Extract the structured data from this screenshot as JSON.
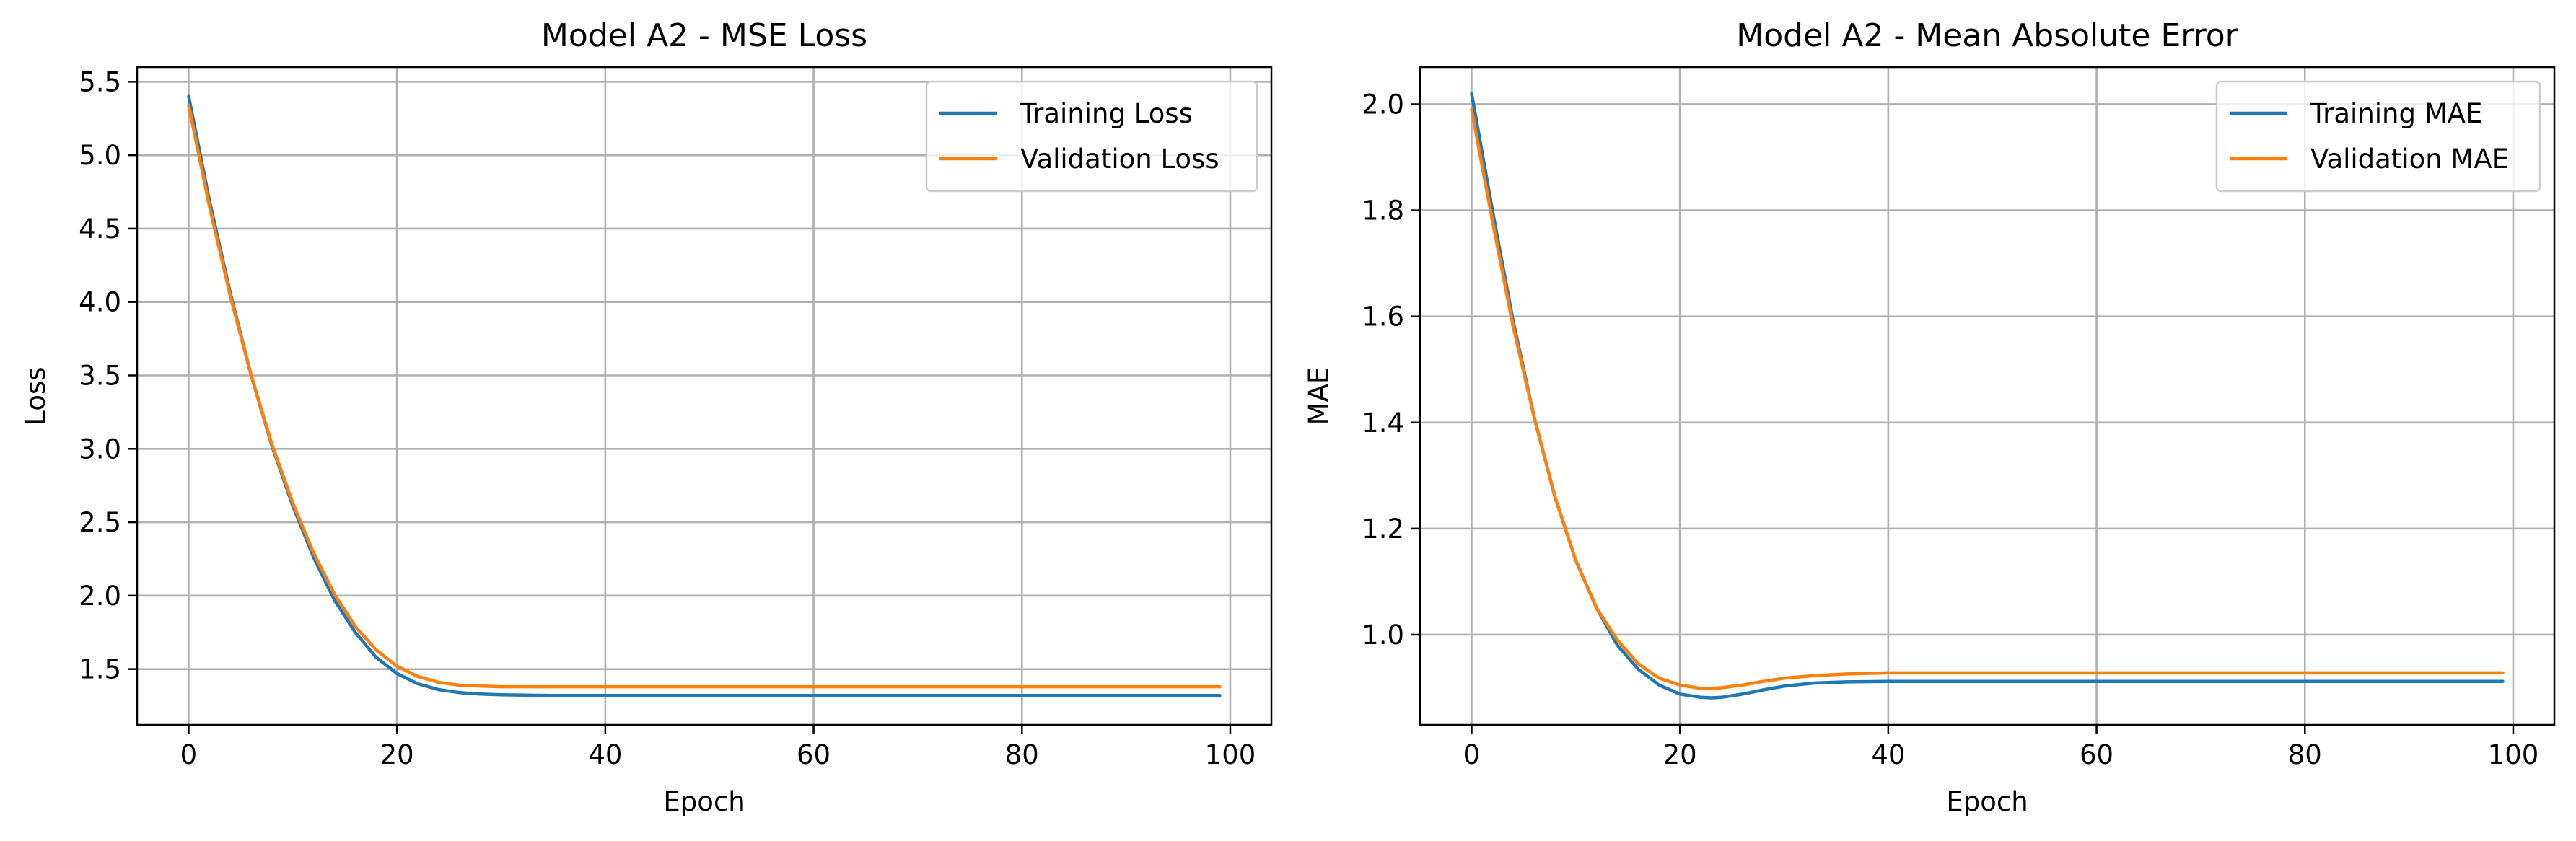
{
  "colors": {
    "training": "#1f77b4",
    "validation": "#ff7f0e",
    "grid": "#b0b0b0"
  },
  "chart_data": [
    {
      "type": "line",
      "title": "Model A2 - MSE Loss",
      "xlabel": "Epoch",
      "ylabel": "Loss",
      "xlim": [
        -4.95,
        103.95
      ],
      "ylim": [
        1.12,
        5.6
      ],
      "xticks": [
        0,
        20,
        40,
        60,
        80,
        100
      ],
      "yticks": [
        1.5,
        2.0,
        2.5,
        3.0,
        3.5,
        4.0,
        4.5,
        5.0,
        5.5
      ],
      "ytick_labels": [
        "1.5",
        "2.0",
        "2.5",
        "3.0",
        "3.5",
        "4.0",
        "4.5",
        "5.0",
        "5.5"
      ],
      "grid": true,
      "legend_loc": "upper right",
      "series": [
        {
          "name": "Training Loss",
          "color": "#1f77b4",
          "x": [
            0,
            2,
            4,
            6,
            8,
            10,
            12,
            14,
            16,
            18,
            20,
            22,
            24,
            26,
            28,
            30,
            35,
            40,
            50,
            60,
            70,
            80,
            90,
            99
          ],
          "y": [
            5.4,
            4.69,
            4.06,
            3.5,
            3.02,
            2.61,
            2.26,
            1.97,
            1.75,
            1.58,
            1.47,
            1.4,
            1.36,
            1.34,
            1.33,
            1.325,
            1.32,
            1.32,
            1.32,
            1.32,
            1.32,
            1.32,
            1.32,
            1.32
          ]
        },
        {
          "name": "Validation Loss",
          "color": "#ff7f0e",
          "x": [
            0,
            2,
            4,
            6,
            8,
            10,
            12,
            14,
            16,
            18,
            20,
            22,
            24,
            26,
            28,
            30,
            35,
            40,
            50,
            60,
            70,
            80,
            90,
            99
          ],
          "y": [
            5.34,
            4.65,
            4.04,
            3.5,
            3.03,
            2.63,
            2.29,
            2.01,
            1.79,
            1.63,
            1.52,
            1.45,
            1.41,
            1.39,
            1.385,
            1.38,
            1.38,
            1.38,
            1.38,
            1.38,
            1.38,
            1.38,
            1.38,
            1.38
          ]
        }
      ]
    },
    {
      "type": "line",
      "title": "Model A2 - Mean Absolute Error",
      "xlabel": "Epoch",
      "ylabel": "MAE",
      "xlim": [
        -4.95,
        103.95
      ],
      "ylim": [
        0.83,
        2.07
      ],
      "xticks": [
        0,
        20,
        40,
        60,
        80,
        100
      ],
      "yticks": [
        1.0,
        1.2,
        1.4,
        1.6,
        1.8,
        2.0
      ],
      "ytick_labels": [
        "1.0",
        "1.2",
        "1.4",
        "1.6",
        "1.8",
        "2.0"
      ],
      "grid": true,
      "legend_loc": "upper right",
      "series": [
        {
          "name": "Training MAE",
          "color": "#1f77b4",
          "x": [
            0,
            2,
            4,
            6,
            8,
            10,
            12,
            14,
            16,
            18,
            20,
            22,
            23,
            24,
            26,
            28,
            30,
            33,
            36,
            40,
            50,
            60,
            70,
            80,
            90,
            99
          ],
          "y": [
            2.02,
            1.8,
            1.59,
            1.41,
            1.26,
            1.14,
            1.05,
            0.98,
            0.935,
            0.905,
            0.888,
            0.882,
            0.881,
            0.882,
            0.888,
            0.896,
            0.903,
            0.909,
            0.911,
            0.912,
            0.912,
            0.912,
            0.912,
            0.912,
            0.912,
            0.912
          ]
        },
        {
          "name": "Validation MAE",
          "color": "#ff7f0e",
          "x": [
            0,
            2,
            4,
            6,
            8,
            10,
            12,
            14,
            16,
            18,
            20,
            22,
            23,
            24,
            26,
            28,
            30,
            33,
            36,
            40,
            50,
            60,
            70,
            80,
            90,
            99
          ],
          "y": [
            1.99,
            1.78,
            1.58,
            1.41,
            1.26,
            1.14,
            1.05,
            0.99,
            0.945,
            0.918,
            0.905,
            0.899,
            0.899,
            0.9,
            0.905,
            0.912,
            0.918,
            0.923,
            0.926,
            0.928,
            0.928,
            0.928,
            0.928,
            0.928,
            0.928,
            0.928
          ]
        }
      ]
    }
  ]
}
